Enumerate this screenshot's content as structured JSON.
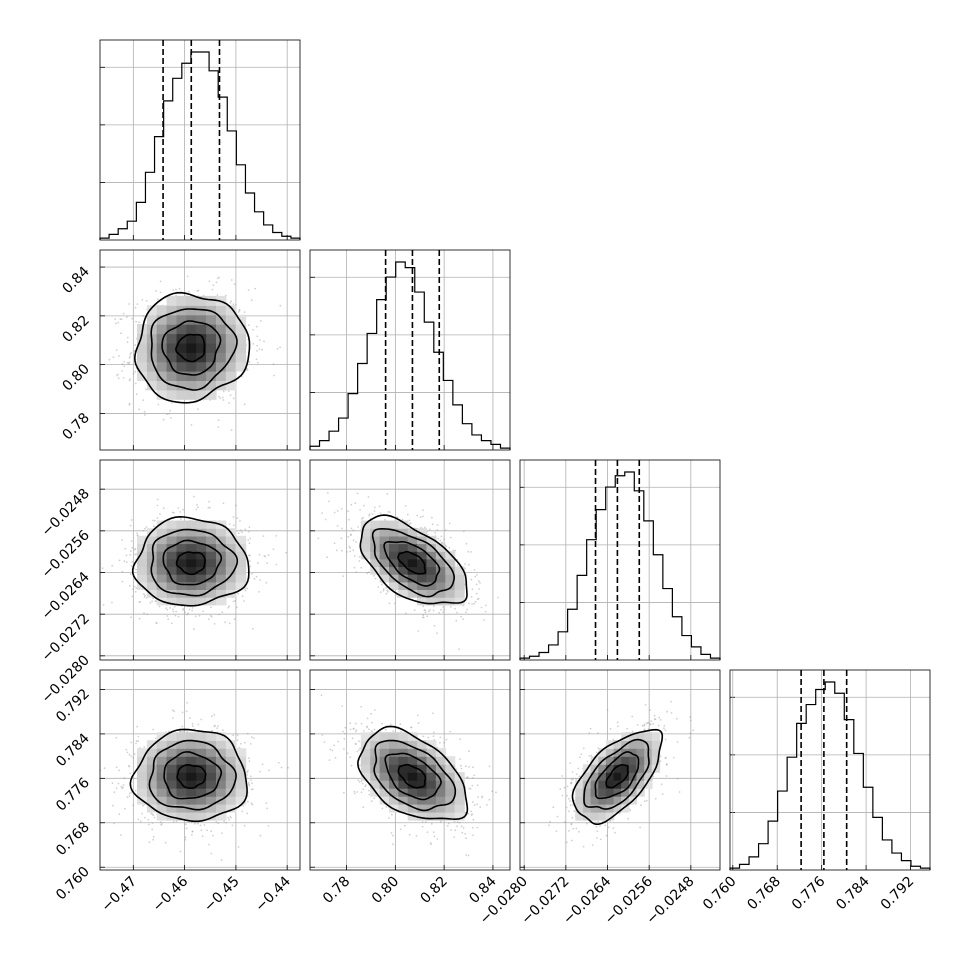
{
  "chart_data": {
    "type": "corner",
    "title": "",
    "grid": true,
    "n_params": 4,
    "params": [
      {
        "name": "",
        "range": [
          -0.4765,
          -0.4375
        ],
        "mean": -0.4587,
        "sigma": 0.0055,
        "quantiles": [
          -0.4642,
          -0.4587,
          -0.4532
        ],
        "ticks": [
          -0.47,
          -0.46,
          -0.45,
          -0.44
        ],
        "tick_labels": [
          "−0.47",
          "−0.46",
          "−0.45",
          "−0.44"
        ],
        "hist": [
          0.01,
          0.03,
          0.06,
          0.1,
          0.2,
          0.36,
          0.55,
          0.74,
          0.86,
          0.94,
          1.0,
          1.0,
          0.9,
          0.76,
          0.58,
          0.4,
          0.25,
          0.15,
          0.08,
          0.04,
          0.02,
          0.01
        ]
      },
      {
        "name": "",
        "range": [
          0.765,
          0.847
        ],
        "mean": 0.807,
        "sigma": 0.011,
        "quantiles": [
          0.796,
          0.807,
          0.818
        ],
        "ticks": [
          0.78,
          0.8,
          0.82,
          0.84
        ],
        "tick_labels": [
          "0.78",
          "0.80",
          "0.82",
          "0.84"
        ],
        "hist": [
          0.02,
          0.05,
          0.1,
          0.17,
          0.3,
          0.46,
          0.62,
          0.8,
          0.92,
          1.0,
          0.97,
          0.84,
          0.68,
          0.52,
          0.37,
          0.24,
          0.14,
          0.08,
          0.05,
          0.03,
          0.01
        ]
      },
      {
        "name": "",
        "range": [
          -0.02808,
          -0.02424
        ],
        "mean": -0.02621,
        "sigma": 0.00042,
        "quantiles": [
          -0.02663,
          -0.02621,
          -0.02579
        ],
        "ticks": [
          -0.028,
          -0.0272,
          -0.0264,
          -0.0256,
          -0.0248
        ],
        "tick_labels": [
          "−0.0280",
          "−0.0272",
          "−0.0264",
          "−0.0256",
          "−0.0248"
        ],
        "hist": [
          0.01,
          0.02,
          0.04,
          0.08,
          0.15,
          0.27,
          0.45,
          0.64,
          0.8,
          0.92,
          0.98,
          1.0,
          0.9,
          0.74,
          0.56,
          0.38,
          0.23,
          0.13,
          0.07,
          0.03,
          0.01
        ]
      },
      {
        "name": "",
        "range": [
          0.7595,
          0.7955
        ],
        "mean": 0.7764,
        "sigma": 0.0041,
        "quantiles": [
          0.7723,
          0.7764,
          0.7805
        ],
        "ticks": [
          0.76,
          0.768,
          0.776,
          0.784,
          0.792
        ],
        "tick_labels": [
          "0.760",
          "0.768",
          "0.776",
          "0.784",
          "0.792"
        ],
        "hist": [
          0.01,
          0.03,
          0.07,
          0.14,
          0.26,
          0.42,
          0.6,
          0.78,
          0.88,
          0.96,
          1.0,
          0.94,
          0.8,
          0.62,
          0.44,
          0.28,
          0.16,
          0.09,
          0.05,
          0.02,
          0.01
        ]
      }
    ],
    "correlations": [
      [
        1.0,
        0.05,
        0.0,
        0.0
      ],
      [
        0.05,
        1.0,
        -0.55,
        -0.45
      ],
      [
        0.0,
        -0.55,
        1.0,
        0.6
      ],
      [
        0.0,
        -0.45,
        0.6,
        1.0
      ]
    ],
    "contour_levels_sigma": [
      0.5,
      1.0,
      1.5,
      2.0
    ],
    "histogram_y_ticks": 3
  }
}
